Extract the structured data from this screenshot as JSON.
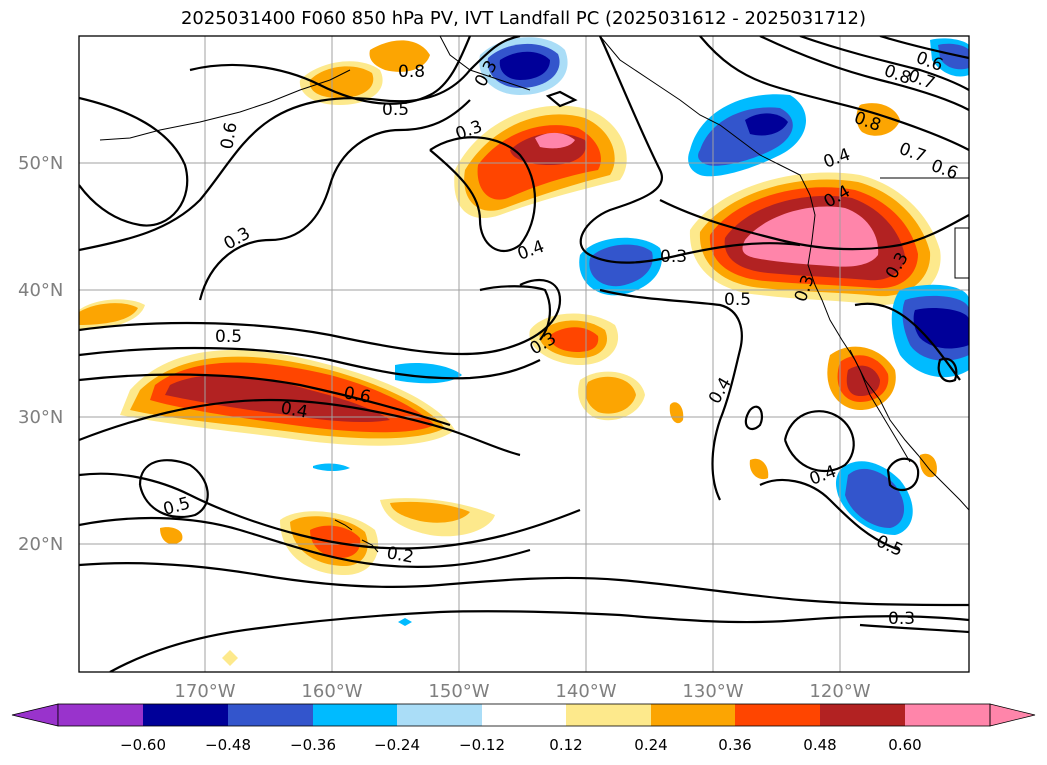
{
  "title": "2025031400 F060 850 hPa PV, IVT Landfall PC (2025031612 - 2025031712)",
  "lat_labels": [
    "50°N",
    "40°N",
    "30°N",
    "20°N"
  ],
  "lon_labels": [
    "170°W",
    "160°W",
    "150°W",
    "140°W",
    "130°W",
    "120°W"
  ],
  "contour_labels": [
    "0.6",
    "0.5",
    "0.3",
    "0.8",
    "0.6",
    "0.7",
    "0.8",
    "0.3",
    "0.8",
    "0.7",
    "0.6",
    "0.4",
    "0.4",
    "0.3",
    "0.3",
    "0.4",
    "0.3",
    "0.5",
    "0.3",
    "0.5",
    "0.6",
    "0.4",
    "0.3",
    "0.4",
    "0.4",
    "0.5",
    "0.2",
    "0.5",
    "0.3"
  ],
  "colorbar": {
    "colors": [
      "#9933cc",
      "#000099",
      "#3355cc",
      "#00bbff",
      "#aaddf7",
      "#ffffff",
      "#fde98c",
      "#fca502",
      "#ff4500",
      "#b22222",
      "#ff85aa"
    ],
    "ticks": [
      "−0.60",
      "−0.48",
      "−0.36",
      "−0.24",
      "−0.12",
      "0.12",
      "0.24",
      "0.36",
      "0.48",
      "0.60"
    ]
  }
}
